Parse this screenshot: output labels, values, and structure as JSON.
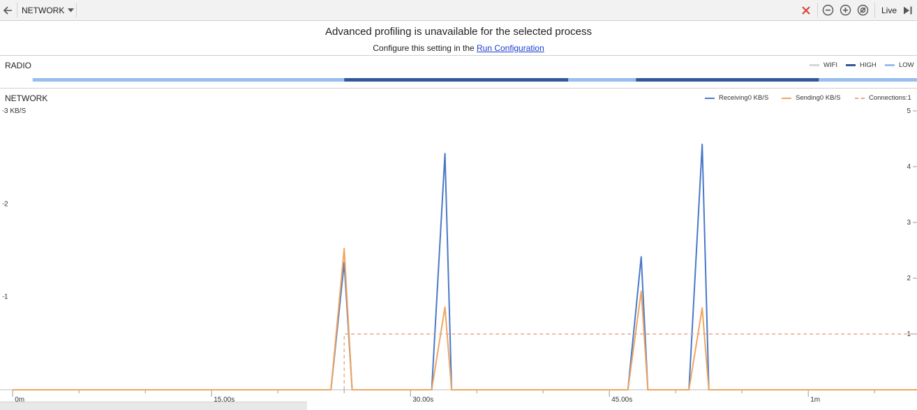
{
  "toolbar": {
    "monitor_label": "NETWORK",
    "live_label": "Live",
    "icons": [
      "back-arrow-icon",
      "dropdown-caret-icon",
      "close-icon",
      "zoom-out-icon",
      "zoom-in-icon",
      "reset-zoom-icon",
      "go-to-live-icon"
    ]
  },
  "banner": {
    "title": "Advanced profiling is unavailable for the selected process",
    "sub_text": "Configure this setting in the",
    "link_text": "Run Configuration"
  },
  "radio": {
    "title": "RADIO",
    "legend": [
      {
        "label": "WIFI",
        "color": "#d6d6d6"
      },
      {
        "label": "HIGH",
        "color": "#31599a"
      },
      {
        "label": "LOW",
        "color": "#97bfee"
      }
    ],
    "segments_sec": [
      {
        "state": "LOW",
        "start": 1.5,
        "end": 25.0
      },
      {
        "state": "HIGH",
        "start": 25.0,
        "end": 41.9
      },
      {
        "state": "LOW",
        "start": 41.9,
        "end": 47.0
      },
      {
        "state": "HIGH",
        "start": 47.0,
        "end": 60.8
      },
      {
        "state": "LOW",
        "start": 60.8,
        "end": 68.2
      }
    ]
  },
  "network": {
    "title": "NETWORK",
    "legend": [
      {
        "label": "Receiving0 KB/S",
        "color": "#4a78c8",
        "style": "solid"
      },
      {
        "label": "Sending0 KB/S",
        "color": "#f0a560",
        "style": "solid"
      },
      {
        "label": "Connections:1",
        "color": "#e8a98c",
        "style": "dashed"
      }
    ]
  },
  "chart_data": {
    "type": "line",
    "title": "NETWORK",
    "x_unit": "seconds",
    "xlim": [
      -0.8,
      68.2
    ],
    "x_ticks": [
      {
        "value": 0,
        "label": "0m"
      },
      {
        "value": 15,
        "label": "15.00s"
      },
      {
        "value": 30,
        "label": "30.00s"
      },
      {
        "value": 45,
        "label": "45.00s"
      },
      {
        "value": 60,
        "label": "1m"
      }
    ],
    "y_left": {
      "label": "KB/S",
      "lim": [
        0,
        3
      ],
      "ticks": [
        {
          "value": 3,
          "label": "3 KB/S"
        },
        {
          "value": 2,
          "label": "2"
        },
        {
          "value": 1,
          "label": "1"
        }
      ]
    },
    "y_right": {
      "label": "Connections",
      "lim": [
        0,
        5
      ],
      "ticks": [
        {
          "value": 5,
          "label": "5"
        },
        {
          "value": 4,
          "label": "4"
        },
        {
          "value": 3,
          "label": "3"
        },
        {
          "value": 2,
          "label": "2"
        },
        {
          "value": 1,
          "label": "1"
        }
      ]
    },
    "series": [
      {
        "name": "Receiving",
        "axis": "left",
        "color": "#4a78c8",
        "points": [
          [
            0,
            0
          ],
          [
            24.0,
            0
          ],
          [
            25.0,
            1.37
          ],
          [
            25.6,
            0
          ],
          [
            31.6,
            0
          ],
          [
            32.6,
            2.54
          ],
          [
            33.1,
            0
          ],
          [
            46.4,
            0
          ],
          [
            47.4,
            1.43
          ],
          [
            47.9,
            0
          ],
          [
            51.0,
            0
          ],
          [
            52.0,
            2.64
          ],
          [
            52.5,
            0
          ],
          [
            68.2,
            0
          ]
        ]
      },
      {
        "name": "Sending",
        "axis": "left",
        "color": "#f0a560",
        "points": [
          [
            0,
            0
          ],
          [
            24.0,
            0
          ],
          [
            25.0,
            1.52
          ],
          [
            25.6,
            0
          ],
          [
            31.6,
            0
          ],
          [
            32.6,
            0.89
          ],
          [
            33.1,
            0
          ],
          [
            46.4,
            0
          ],
          [
            47.4,
            1.06
          ],
          [
            47.9,
            0
          ],
          [
            51.0,
            0
          ],
          [
            52.0,
            0.88
          ],
          [
            52.5,
            0
          ],
          [
            68.2,
            0
          ]
        ]
      },
      {
        "name": "Connections",
        "axis": "right",
        "color": "#e8a98c",
        "dashed": true,
        "points": [
          [
            25.0,
            0
          ],
          [
            25.0,
            1
          ],
          [
            68.2,
            1
          ]
        ]
      }
    ]
  }
}
